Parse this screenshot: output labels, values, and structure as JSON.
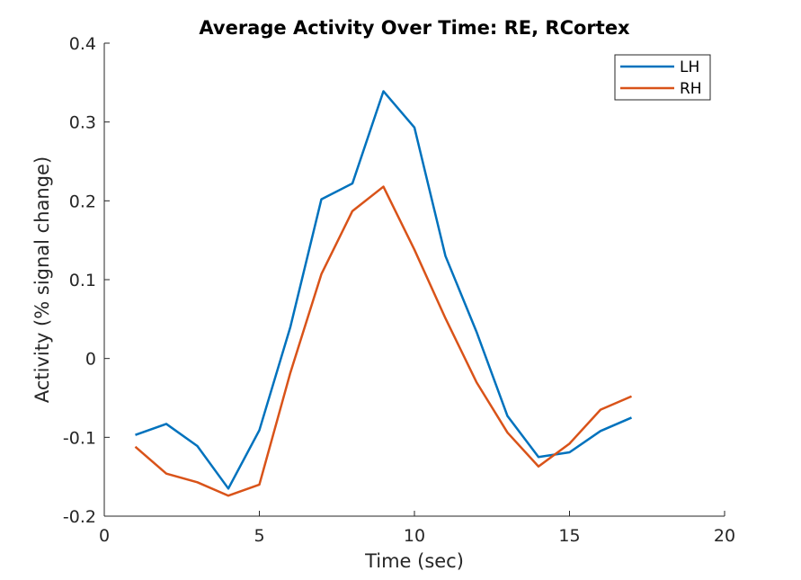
{
  "chart_data": {
    "type": "line",
    "title": "Average Activity Over Time: RE, RCortex",
    "xlabel": "Time (sec)",
    "ylabel": "Activity (% signal change)",
    "xlim": [
      0,
      20
    ],
    "ylim": [
      -0.2,
      0.4
    ],
    "x_ticks": [
      0,
      5,
      10,
      15,
      20
    ],
    "x_tick_labels": [
      "0",
      "5",
      "10",
      "15",
      "20"
    ],
    "y_ticks": [
      -0.2,
      -0.1,
      0,
      0.1,
      0.2,
      0.3,
      0.4
    ],
    "y_tick_labels": [
      "-0.2",
      "-0.1",
      "0",
      "0.1",
      "0.2",
      "0.3",
      "0.4"
    ],
    "grid": false,
    "legend_position": "top-right",
    "x": [
      1,
      2,
      3,
      4,
      5,
      6,
      7,
      8,
      9,
      10,
      11,
      12,
      13,
      14,
      15,
      16,
      17
    ],
    "series": [
      {
        "name": "LH",
        "color": "#0072bd",
        "values": [
          -0.097,
          -0.083,
          -0.111,
          -0.165,
          -0.091,
          0.04,
          0.202,
          0.222,
          0.339,
          0.293,
          0.13,
          0.034,
          -0.073,
          -0.125,
          -0.119,
          -0.092,
          -0.075
        ]
      },
      {
        "name": "RH",
        "color": "#d95319",
        "values": [
          -0.112,
          -0.146,
          -0.157,
          -0.174,
          -0.16,
          -0.018,
          0.107,
          0.187,
          0.218,
          0.138,
          0.051,
          -0.03,
          -0.094,
          -0.137,
          -0.108,
          -0.065,
          -0.048
        ]
      }
    ]
  }
}
